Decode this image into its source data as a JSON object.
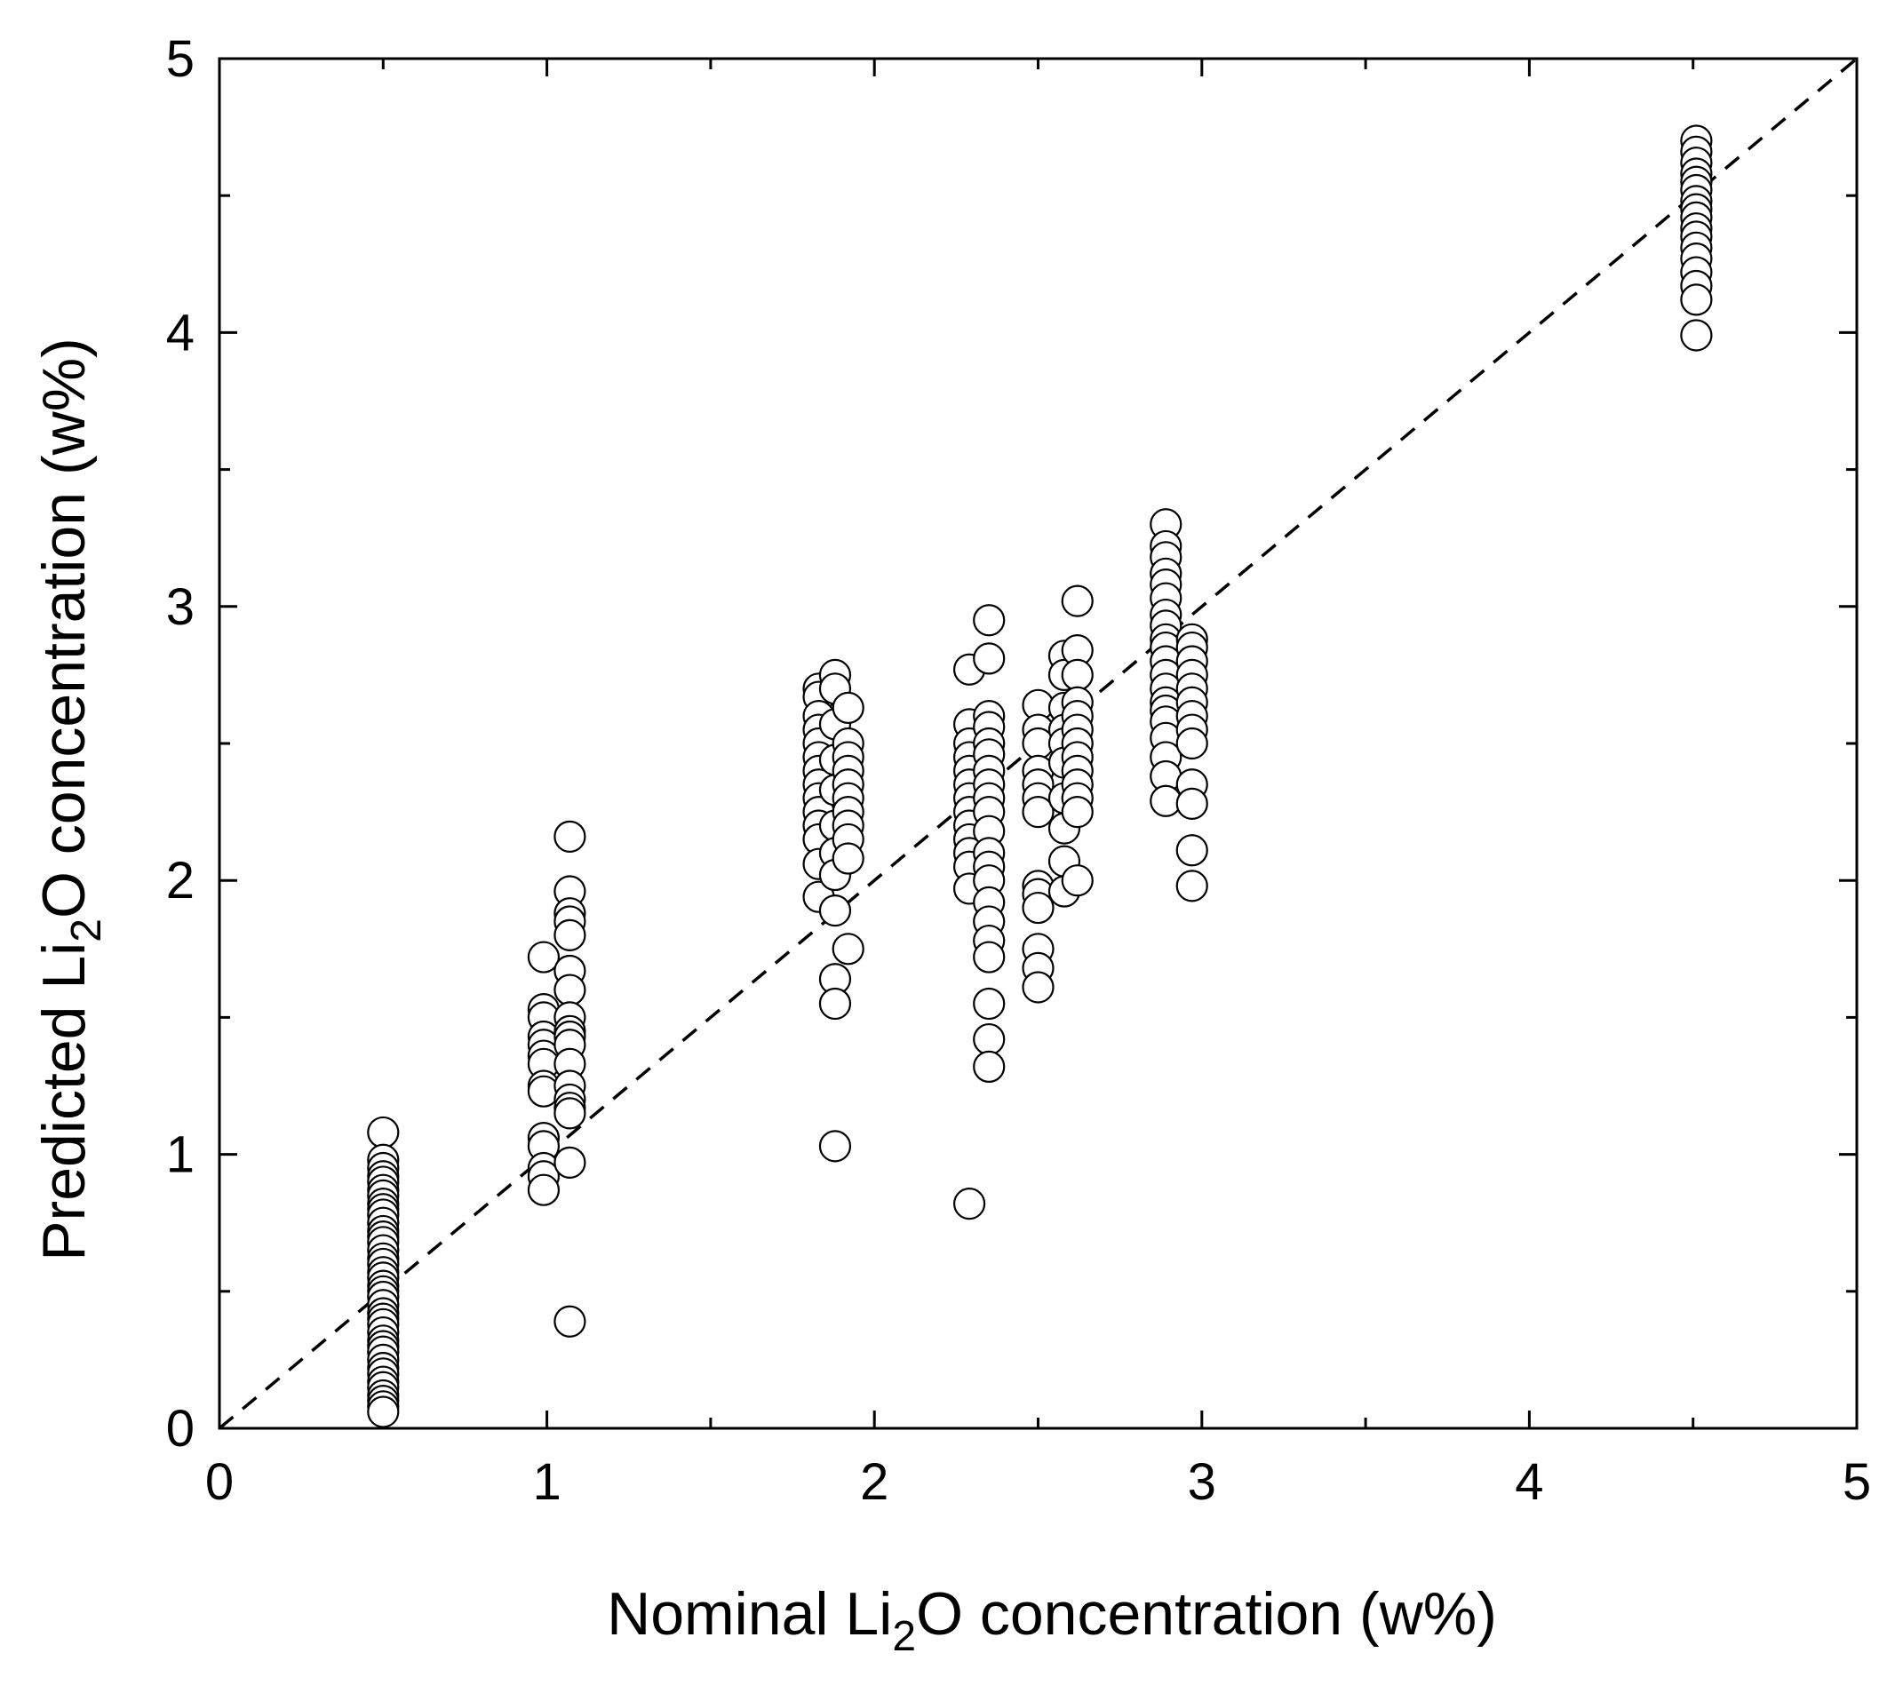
{
  "chart_data": {
    "type": "scatter",
    "title": "",
    "xlabel": {
      "pre": "Nominal Li",
      "sub": "2",
      "post": "O concentration (w%)"
    },
    "ylabel": {
      "pre": "Predicted Li",
      "sub": "2",
      "post": "O concentration (w%)"
    },
    "xlim": [
      0,
      5
    ],
    "ylim": [
      0,
      5
    ],
    "x_major_ticks": [
      0,
      1,
      2,
      3,
      4,
      5
    ],
    "y_major_ticks": [
      0,
      1,
      2,
      3,
      4,
      5
    ],
    "x_minor_step": 0.5,
    "y_minor_step": 0.5,
    "x_tick_labels": [
      "0",
      "1",
      "2",
      "3",
      "4",
      "5"
    ],
    "y_tick_labels": [
      "0",
      "1",
      "2",
      "3",
      "4",
      "5"
    ],
    "marker": "open-circle",
    "reference_line": {
      "style": "dashed",
      "x": [
        0,
        5
      ],
      "y": [
        0,
        5
      ]
    },
    "series": [
      {
        "name": "0.5",
        "x": 0.5,
        "y": [
          1.08,
          0.98,
          0.95,
          0.92,
          0.9,
          0.87,
          0.85,
          0.82,
          0.8,
          0.78,
          0.75,
          0.72,
          0.7,
          0.68,
          0.65,
          0.62,
          0.6,
          0.57,
          0.55,
          0.52,
          0.5,
          0.48,
          0.45,
          0.42,
          0.4,
          0.38,
          0.35,
          0.32,
          0.3,
          0.28,
          0.25,
          0.22,
          0.2,
          0.17,
          0.15,
          0.12,
          0.1,
          0.08,
          0.06
        ]
      },
      {
        "name": "1.0",
        "x": 0.99,
        "y": [
          1.72,
          1.53,
          1.5,
          1.43,
          1.4,
          1.36,
          1.33,
          1.25,
          1.23,
          1.06,
          1.03,
          0.95,
          0.92,
          0.87
        ]
      },
      {
        "name": "1.07",
        "x": 1.07,
        "y": [
          2.16,
          1.96,
          1.88,
          1.85,
          1.8,
          1.67,
          1.6,
          1.5,
          1.45,
          1.43,
          1.4,
          1.33,
          1.25,
          1.2,
          1.17,
          1.15,
          0.97,
          0.39
        ]
      },
      {
        "name": "1.85",
        "x": 1.83,
        "y": [
          2.7,
          2.67,
          2.6,
          2.55,
          2.5,
          2.45,
          2.4,
          2.35,
          2.3,
          2.25,
          2.2,
          2.15,
          2.06,
          1.94
        ]
      },
      {
        "name": "1.88",
        "x": 1.88,
        "y": [
          2.75,
          2.7,
          2.57,
          2.44,
          2.33,
          2.2,
          2.1,
          2.02,
          1.89,
          1.64,
          1.55,
          1.03
        ]
      },
      {
        "name": "1.92",
        "x": 1.92,
        "y": [
          2.63,
          2.5,
          2.45,
          2.4,
          2.35,
          2.3,
          2.25,
          2.2,
          2.15,
          2.08,
          1.75
        ]
      },
      {
        "name": "2.3",
        "x": 2.29,
        "y": [
          2.77,
          2.57,
          2.5,
          2.45,
          2.4,
          2.35,
          2.3,
          2.25,
          2.2,
          2.15,
          2.1,
          2.05,
          1.97,
          0.82
        ]
      },
      {
        "name": "2.35",
        "x": 2.35,
        "y": [
          2.95,
          2.81,
          2.6,
          2.56,
          2.5,
          2.46,
          2.4,
          2.35,
          2.3,
          2.25,
          2.18,
          2.1,
          2.05,
          2.0,
          1.92,
          1.85,
          1.78,
          1.72,
          1.55,
          1.42,
          1.32
        ]
      },
      {
        "name": "2.5",
        "x": 2.5,
        "y": [
          2.64,
          2.55,
          2.5,
          2.4,
          2.35,
          2.3,
          2.25,
          1.98,
          1.95,
          1.9,
          1.75,
          1.68,
          1.61
        ]
      },
      {
        "name": "2.58",
        "x": 2.58,
        "y": [
          2.82,
          2.75,
          2.63,
          2.55,
          2.5,
          2.43,
          2.3,
          2.19,
          2.07,
          1.96
        ]
      },
      {
        "name": "2.62",
        "x": 2.62,
        "y": [
          3.02,
          2.84,
          2.75,
          2.65,
          2.6,
          2.55,
          2.5,
          2.45,
          2.4,
          2.35,
          2.3,
          2.25,
          2.0
        ]
      },
      {
        "name": "2.9",
        "x": 2.89,
        "y": [
          3.3,
          3.22,
          3.18,
          3.12,
          3.08,
          3.03,
          2.97,
          2.93,
          2.88,
          2.85,
          2.8,
          2.75,
          2.7,
          2.65,
          2.62,
          2.58,
          2.52,
          2.45,
          2.38,
          2.29
        ]
      },
      {
        "name": "2.97",
        "x": 2.97,
        "y": [
          2.88,
          2.85,
          2.8,
          2.75,
          2.7,
          2.65,
          2.6,
          2.55,
          2.5,
          2.35,
          2.28,
          2.11,
          1.98
        ]
      },
      {
        "name": "4.5",
        "x": 4.51,
        "y": [
          4.7,
          4.66,
          4.62,
          4.58,
          4.55,
          4.52,
          4.48,
          4.45,
          4.42,
          4.38,
          4.35,
          4.31,
          4.27,
          4.22,
          4.17,
          4.12,
          3.99
        ]
      }
    ]
  }
}
